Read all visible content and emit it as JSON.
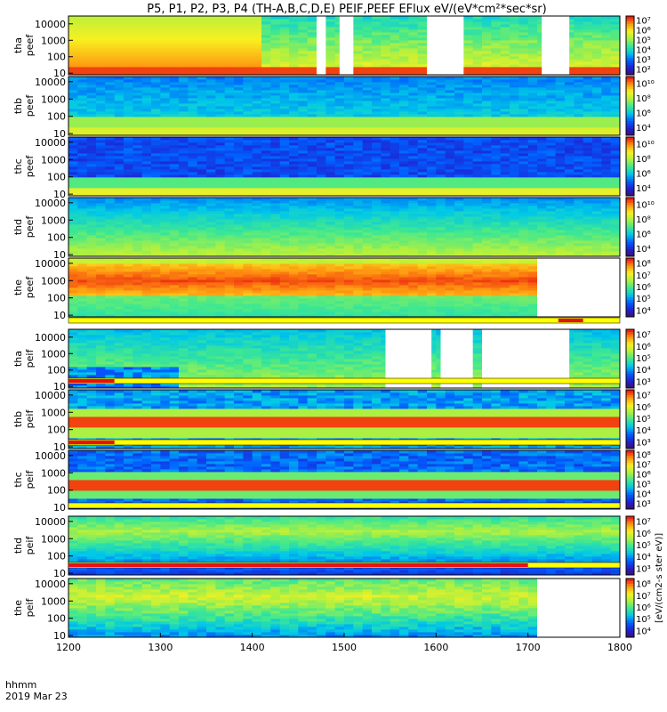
{
  "chart_data": {
    "type": "heatmap",
    "title": "P5, P1, P2, P3, P4 (TH-A,B,C,D,E) PEIF,PEEF EFlux eV/(eV*cm²*sec*sr)",
    "x_axis": {
      "ticks": [
        "1200",
        "1300",
        "1400",
        "1500",
        "1600",
        "1700",
        "1800"
      ],
      "range": [
        1200,
        1800
      ],
      "label_line1": "hhmm",
      "label_line2": "2019 Mar 23"
    },
    "y_axis_scale": "log",
    "colorbar_scale": "log",
    "colorbar_label": "[eV/(cm2-s ster eV)]",
    "colormap": [
      "#3b1070",
      "#2020d0",
      "#0060ff",
      "#00c8e8",
      "#40e890",
      "#b0f040",
      "#f8f020",
      "#ff9010",
      "#e81010"
    ],
    "panels": [
      {
        "id": "tha_peef",
        "ylabel1": "tha",
        "ylabel2": "peef",
        "yticks": [
          "10",
          "100",
          "1000",
          "10000"
        ],
        "ylim": [
          8,
          30000
        ],
        "cb_ticks": [
          "10²",
          "10³",
          "10⁴",
          "10⁵",
          "10⁶",
          "10⁷"
        ],
        "cb_range": [
          2,
          7
        ],
        "gaps": [
          [
            1470,
            1480
          ],
          [
            1495,
            1510
          ],
          [
            1590,
            1630
          ],
          [
            1715,
            1745
          ]
        ],
        "status_bar": false
      },
      {
        "id": "thb_peef",
        "ylabel1": "thb",
        "ylabel2": "peef",
        "yticks": [
          "10",
          "100",
          "1000",
          "10000"
        ],
        "ylim": [
          8,
          20000
        ],
        "cb_ticks": [
          "10⁴",
          "10⁶",
          "10⁸",
          "10¹⁰"
        ],
        "cb_range": [
          3,
          11
        ],
        "gaps": [],
        "status_bar": false
      },
      {
        "id": "thc_peef",
        "ylabel1": "thc",
        "ylabel2": "peef",
        "yticks": [
          "10",
          "100",
          "1000",
          "10000"
        ],
        "ylim": [
          8,
          20000
        ],
        "cb_ticks": [
          "10⁴",
          "10⁶",
          "10⁸",
          "10¹⁰"
        ],
        "cb_range": [
          3,
          11
        ],
        "gaps": [],
        "status_bar": false
      },
      {
        "id": "thd_peef",
        "ylabel1": "thd",
        "ylabel2": "peef",
        "yticks": [
          "10",
          "100",
          "1000",
          "10000"
        ],
        "ylim": [
          8,
          20000
        ],
        "cb_ticks": [
          "10⁴",
          "10⁶",
          "10⁸",
          "10¹⁰"
        ],
        "cb_range": [
          3,
          11
        ],
        "gaps": [],
        "status_bar": false
      },
      {
        "id": "the_peef",
        "ylabel1": "the",
        "ylabel2": "peef",
        "yticks": [
          "10",
          "100",
          "1000",
          "10000"
        ],
        "ylim": [
          8,
          20000
        ],
        "cb_ticks": [
          "10⁴",
          "10⁵",
          "10⁶",
          "10⁷",
          "10⁸"
        ],
        "cb_range": [
          3,
          8
        ],
        "gaps": [
          [
            1710,
            1800
          ]
        ],
        "status_bar": true
      },
      {
        "id": "tha_peif",
        "ylabel1": "tha",
        "ylabel2": "peif",
        "yticks": [
          "10",
          "100",
          "1000",
          "10000"
        ],
        "ylim": [
          8,
          30000
        ],
        "cb_ticks": [
          "10³",
          "10⁴",
          "10⁵",
          "10⁶",
          "10⁷"
        ],
        "cb_range": [
          3,
          7
        ],
        "gaps": [
          [
            1545,
            1595
          ],
          [
            1605,
            1640
          ],
          [
            1650,
            1745
          ]
        ],
        "status_bar": true
      },
      {
        "id": "thb_peif",
        "ylabel1": "thb",
        "ylabel2": "peif",
        "yticks": [
          "10",
          "100",
          "1000",
          "10000"
        ],
        "ylim": [
          8,
          20000
        ],
        "cb_ticks": [
          "10³",
          "10⁴",
          "10⁵",
          "10⁶",
          "10⁷"
        ],
        "cb_range": [
          3,
          7
        ],
        "gaps": [],
        "status_bar": true
      },
      {
        "id": "thc_peif",
        "ylabel1": "thc",
        "ylabel2": "peif",
        "yticks": [
          "10",
          "100",
          "1000",
          "10000"
        ],
        "ylim": [
          8,
          20000
        ],
        "cb_ticks": [
          "10³",
          "10⁴",
          "10⁵",
          "10⁶",
          "10⁷",
          "10⁸"
        ],
        "cb_range": [
          3,
          8
        ],
        "gaps": [],
        "status_bar": true
      },
      {
        "id": "thd_peif",
        "ylabel1": "thd",
        "ylabel2": "peif",
        "yticks": [
          "10",
          "100",
          "1000",
          "10000"
        ],
        "ylim": [
          8,
          20000
        ],
        "cb_ticks": [
          "10³",
          "10⁴",
          "10⁵",
          "10⁶",
          "10⁷"
        ],
        "cb_range": [
          3,
          7
        ],
        "gaps": [],
        "status_bar": true
      },
      {
        "id": "the_peif",
        "ylabel1": "the",
        "ylabel2": "peif",
        "yticks": [
          "10",
          "100",
          "1000",
          "10000"
        ],
        "ylim": [
          8,
          20000
        ],
        "cb_ticks": [
          "10⁴",
          "10⁵",
          "10⁶",
          "10⁷",
          "10⁸"
        ],
        "cb_range": [
          3,
          8
        ],
        "gaps": [
          [
            1710,
            1800
          ]
        ],
        "status_bar": true
      }
    ]
  }
}
